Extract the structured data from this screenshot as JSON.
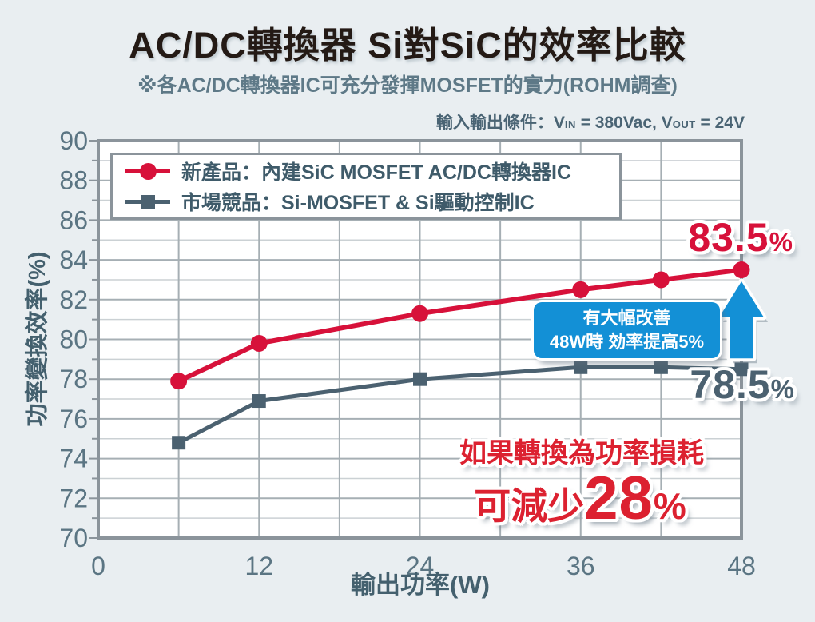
{
  "header": {
    "title": "AC/DC轉換器 Si對SiC的效率比較",
    "subtitle": "※各AC/DC轉換器IC可充分發揮MOSFET的實力(ROHM調查)",
    "condition_label": "輸入輸出條件：",
    "condition_v1": "V",
    "condition_sub1": "IN",
    "condition_mid": " = 380Vac, ",
    "condition_v2": "V",
    "condition_sub2": "OUT",
    "condition_end": " = 24V"
  },
  "legend": {
    "items": [
      {
        "label": "新產品：內建SiC MOSFET AC/DC轉換器IC",
        "marker": "circle",
        "color": "#d7113a"
      },
      {
        "label": "市場競品：Si-MOSFET & Si驅動控制IC",
        "marker": "square",
        "color": "#4b6170"
      }
    ]
  },
  "annotations": {
    "peak_new": {
      "value": "83.5",
      "unit": "%"
    },
    "peak_competitor": {
      "value": "78.5",
      "unit": "%"
    },
    "callout": {
      "line1": "有大幅改善",
      "line2": "48W時 効率提高5%"
    },
    "loss": {
      "line1": "如果轉換為功率損耗",
      "prefix": "可減少",
      "value": "28",
      "unit": "%"
    }
  },
  "chart_data": {
    "type": "line",
    "x": [
      6,
      12,
      24,
      36,
      42,
      48
    ],
    "series": [
      {
        "name": "新產品：內建SiC MOSFET AC/DC轉換器IC",
        "marker": "circle",
        "color": "#d7113a",
        "values": [
          77.9,
          79.8,
          81.3,
          82.5,
          83.0,
          83.5
        ]
      },
      {
        "name": "市場競品：Si-MOSFET & Si驅動控制IC",
        "marker": "square",
        "color": "#4b6170",
        "values": [
          74.8,
          76.9,
          78.0,
          78.6,
          78.6,
          78.5
        ]
      }
    ],
    "title": "AC/DC轉換器 Si對SiC的效率比較",
    "xlabel": "輸出功率(W)",
    "ylabel": "功率變換效率(%)",
    "xlim": [
      0,
      48
    ],
    "ylim": [
      70,
      90
    ],
    "xticks": [
      0,
      12,
      24,
      36,
      48
    ],
    "yticks": [
      70,
      72,
      74,
      76,
      78,
      80,
      82,
      84,
      86,
      88,
      90
    ],
    "x_minor_step": 6,
    "y_minor_step": 1,
    "grid": true,
    "legend_position": "top-left"
  },
  "colors": {
    "accent_red": "#d7113a",
    "annotation_red": "#dc2130",
    "slate": "#4b6170",
    "callout_blue": "#1390d6",
    "background": "#e9eef1",
    "plot_background": "#ffffff",
    "grid_minor": "#cbd1d4",
    "grid_major": "#a6afb4",
    "frame": "#8b949b",
    "tick_text": "#5b7583"
  }
}
